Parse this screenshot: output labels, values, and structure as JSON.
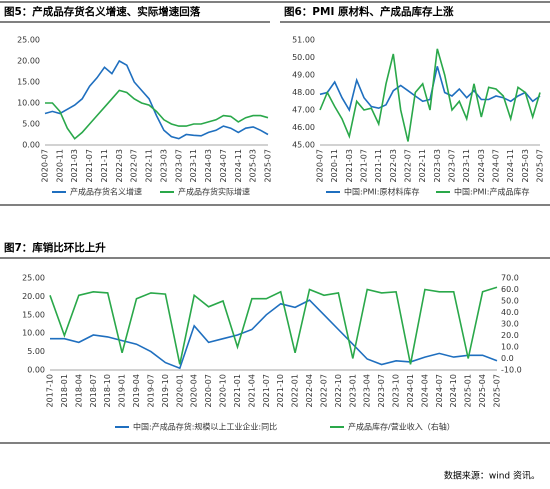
{
  "chart_data": [
    {
      "type": "line",
      "title": "图5：产成品存货名义增速、实际增速回落",
      "categories": [
        "2020-07",
        null,
        "2020-11",
        null,
        "2021-03",
        null,
        "2021-07",
        null,
        "2021-11",
        null,
        "2022-03",
        null,
        "2022-07",
        null,
        "2022-11",
        null,
        "2023-03",
        null,
        "2023-07",
        null,
        "2023-11",
        null,
        "2024-03",
        null,
        "2024-07",
        null,
        "2024-11",
        null,
        "2025-03",
        null,
        "2025-07"
      ],
      "series": [
        {
          "name": "产成品存货名义增速",
          "color": "#1f6fbf",
          "values": [
            7.5,
            8,
            7.5,
            8.5,
            9.5,
            11,
            14,
            16,
            18.5,
            17,
            20,
            19,
            15,
            13,
            11,
            7,
            3.5,
            2,
            1.5,
            2.5,
            2.3,
            2.2,
            3,
            3.5,
            4.5,
            4,
            3,
            4,
            4.3,
            3.5,
            2.5
          ]
        },
        {
          "name": "产成品存货实际增速",
          "color": "#2aa84a",
          "values": [
            10,
            10,
            8,
            4,
            1.5,
            3,
            5,
            7,
            9,
            11,
            13,
            12.5,
            11,
            10,
            9.5,
            8,
            6,
            5,
            4.5,
            4.5,
            5,
            5,
            5.5,
            6,
            7,
            6.8,
            5.5,
            6.5,
            7,
            7,
            6.5
          ]
        }
      ],
      "ylim": [
        0,
        25
      ],
      "yticks": [
        {
          "value": 0,
          "label": "0.00"
        },
        {
          "value": 5,
          "label": "5.00"
        },
        {
          "value": 10,
          "label": "10.00"
        },
        {
          "value": 15,
          "label": "15.00"
        },
        {
          "value": 20,
          "label": "20.00"
        },
        {
          "value": 25,
          "label": "25.00"
        }
      ],
      "grid": false
    },
    {
      "type": "line",
      "title": "图6：PMI 原材料、产成品库存上涨",
      "categories": [
        "2020-07",
        null,
        "2020-11",
        null,
        "2021-03",
        null,
        "2021-07",
        null,
        "2021-11",
        null,
        "2022-03",
        null,
        "2022-07",
        null,
        "2022-11",
        null,
        "2023-03",
        null,
        "2023-07",
        null,
        "2023-11",
        null,
        "2024-03",
        null,
        "2024-07",
        null,
        "2024-11",
        null,
        "2025-03",
        null,
        "2025-07"
      ],
      "series": [
        {
          "name": "中国:PMI:原材料库存",
          "color": "#1f6fbf",
          "values": [
            47.9,
            48.0,
            48.6,
            47.7,
            47.0,
            48.7,
            47.7,
            47.2,
            47.1,
            47.3,
            48.1,
            48.4,
            48.1,
            47.8,
            47.5,
            47.6,
            49.5,
            48.0,
            47.8,
            48.2,
            47.7,
            48.1,
            47.6,
            47.6,
            47.8,
            47.7,
            47.5,
            47.8,
            48.0,
            47.5,
            47.8
          ]
        },
        {
          "name": "中国:PMI:产成品库存",
          "color": "#2aa84a",
          "values": [
            47.0,
            48.0,
            47.2,
            46.5,
            45.5,
            47.5,
            47.0,
            47.1,
            46.2,
            48.5,
            50.2,
            47.0,
            45.2,
            48.0,
            48.5,
            47.0,
            50.5,
            49.0,
            47.0,
            47.5,
            46.5,
            48.5,
            46.6,
            48.3,
            48.2,
            47.8,
            46.5,
            48.3,
            48.0,
            46.6,
            48.0
          ]
        }
      ],
      "ylim": [
        45,
        51
      ],
      "yticks": [
        {
          "value": 45,
          "label": "45.00"
        },
        {
          "value": 46,
          "label": "46.00"
        },
        {
          "value": 47,
          "label": "47.00"
        },
        {
          "value": 48,
          "label": "48.00"
        },
        {
          "value": 49,
          "label": "49.00"
        },
        {
          "value": 50,
          "label": "50.00"
        },
        {
          "value": 51,
          "label": "51.00"
        }
      ],
      "grid": false
    },
    {
      "type": "line",
      "title": "图7：库销比环比上升",
      "categories": [
        "2017-10",
        "2018-01",
        "2018-04",
        "2018-07",
        "2018-10",
        "2019-01",
        "2019-04",
        "2019-07",
        "2019-10",
        "2020-01",
        "2020-04",
        "2020-07",
        "2020-10",
        "2021-01",
        "2021-04",
        "2021-07",
        "2021-10",
        "2022-01",
        "2022-04",
        "2022-07",
        "2022-10",
        "2023-01",
        "2023-04",
        "2023-07",
        "2023-10",
        "2024-01",
        "2024-04",
        "2024-07",
        "2024-10",
        "2025-01",
        "2025-04",
        "2025-07"
      ],
      "series": [
        {
          "name": "中国:产成品存货:规模以上工业企业:同比",
          "color": "#1f6fbf",
          "values": [
            8.5,
            8.5,
            7.5,
            9.5,
            9,
            8,
            7,
            5,
            2,
            0.5,
            12,
            7.5,
            8.5,
            9.5,
            11,
            15,
            18,
            17,
            19,
            15,
            11,
            7,
            3,
            1.5,
            2.5,
            2.2,
            3.5,
            4.5,
            3.5,
            4,
            4,
            2.5
          ]
        },
        {
          "name": "产成品库存/营业收入（右轴）",
          "color": "#2aa84a",
          "axis": "y2",
          "values": [
            55,
            20,
            55,
            58,
            57,
            5,
            52,
            57,
            56,
            -5,
            55,
            45,
            50,
            10,
            52,
            52,
            58,
            5,
            60,
            55,
            57,
            0,
            60,
            57,
            58,
            -5,
            60,
            58,
            58,
            0,
            58,
            62
          ]
        }
      ],
      "ylim": [
        0,
        25
      ],
      "yticks": [
        {
          "value": 0,
          "label": "0.00"
        },
        {
          "value": 5,
          "label": "5.00"
        },
        {
          "value": 10,
          "label": "10.00"
        },
        {
          "value": 15,
          "label": "15.00"
        },
        {
          "value": 20,
          "label": "20.00"
        },
        {
          "value": 25,
          "label": "25.00"
        }
      ],
      "y2lim": [
        -10,
        70
      ],
      "y2ticks": [
        {
          "value": -10,
          "label": "-10.0"
        },
        {
          "value": 0,
          "label": "0.0"
        },
        {
          "value": 10,
          "label": "10.0"
        },
        {
          "value": 20,
          "label": "20.0"
        },
        {
          "value": 30,
          "label": "30.0"
        },
        {
          "value": 40,
          "label": "40.0"
        },
        {
          "value": 50,
          "label": "50.0"
        },
        {
          "value": 60,
          "label": "60.0"
        },
        {
          "value": 70,
          "label": "70.0"
        }
      ],
      "grid": false
    }
  ],
  "source": "数据来源：wind 资讯。"
}
